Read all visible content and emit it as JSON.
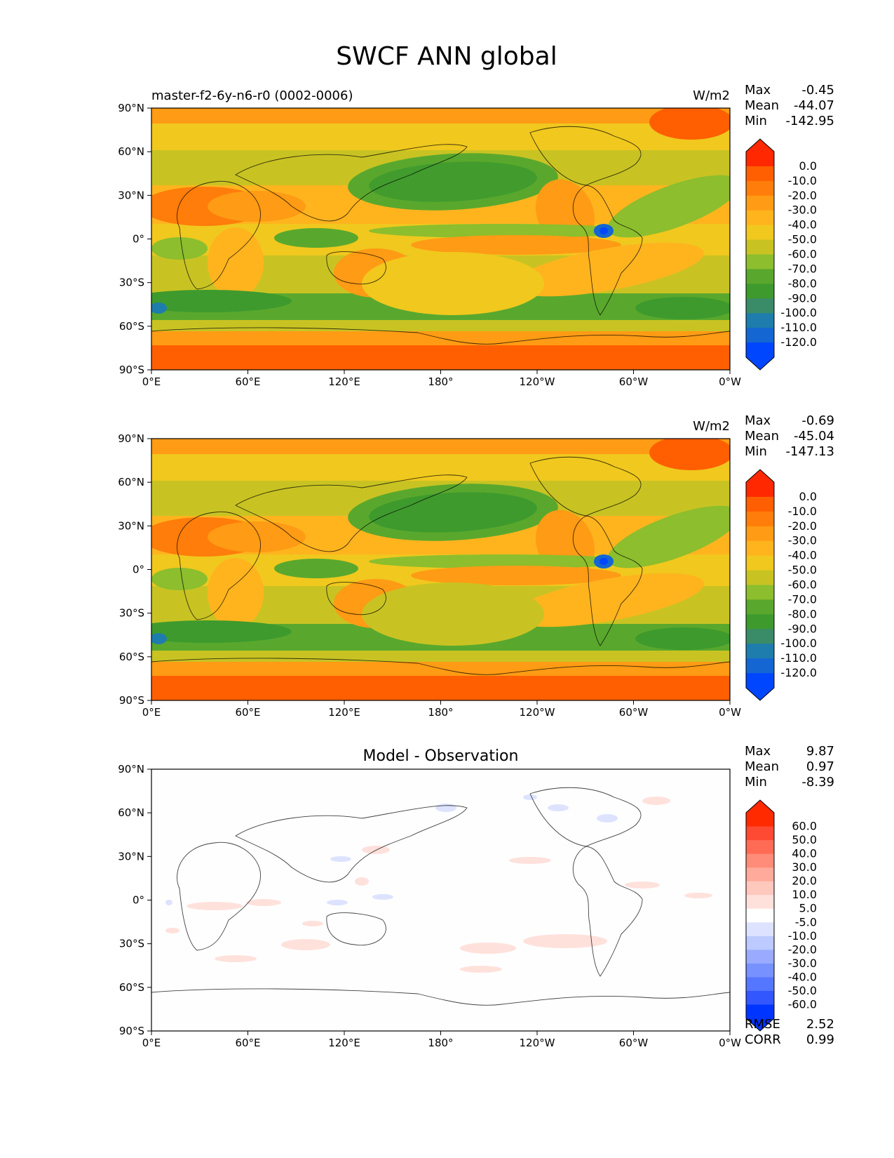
{
  "figure": {
    "title": "SWCF ANN global"
  },
  "axes": {
    "x_ticks": [
      "0°E",
      "60°E",
      "120°E",
      "180°",
      "120°W",
      "60°W",
      "0°W"
    ],
    "y_ticks": [
      "90°N",
      "60°N",
      "30°N",
      "0°",
      "30°S",
      "60°S",
      "90°S"
    ]
  },
  "colors": {
    "field": [
      "#0046ff",
      "#1466d2",
      "#1e7dac",
      "#3a8b68",
      "#3e9a2d",
      "#59a82d",
      "#8cbe2d",
      "#c8c323",
      "#f0c81e",
      "#ffb41e",
      "#ff9b14",
      "#ff7d0a",
      "#ff5f00",
      "#ff2800"
    ],
    "diff": [
      "#0034ff",
      "#3357ff",
      "#5577ff",
      "#7791ff",
      "#9aabff",
      "#bccaff",
      "#dde3ff",
      "#ffffff",
      "#ffe1dc",
      "#ffc8bd",
      "#ffaa9b",
      "#ff8c78",
      "#ff6b55",
      "#ff4a33",
      "#ff2a00"
    ]
  },
  "chart_data": [
    {
      "type": "heatmap",
      "title_left": "master-f2-6y-n6-r0 (0002-0006)",
      "units": "W/m2",
      "stats": {
        "max": {
          "label": "Max",
          "value": "-0.45"
        },
        "mean": {
          "label": "Mean",
          "value": "-44.07"
        },
        "min": {
          "label": "Min",
          "value": "-142.95"
        }
      },
      "colorbar_levels": [
        "0.0",
        "-10.0",
        "-20.0",
        "-30.0",
        "-40.0",
        "-50.0",
        "-60.0",
        "-70.0",
        "-80.0",
        "-90.0",
        "-100.0",
        "-110.0",
        "-120.0"
      ],
      "xlim": [
        0,
        360
      ],
      "ylim": [
        -90,
        90
      ]
    },
    {
      "type": "heatmap",
      "units": "W/m2",
      "stats": {
        "max": {
          "label": "Max",
          "value": "-0.69"
        },
        "mean": {
          "label": "Mean",
          "value": "-45.04"
        },
        "min": {
          "label": "Min",
          "value": "-147.13"
        }
      },
      "colorbar_levels": [
        "0.0",
        "-10.0",
        "-20.0",
        "-30.0",
        "-40.0",
        "-50.0",
        "-60.0",
        "-70.0",
        "-80.0",
        "-90.0",
        "-100.0",
        "-110.0",
        "-120.0"
      ],
      "xlim": [
        0,
        360
      ],
      "ylim": [
        -90,
        90
      ]
    },
    {
      "type": "heatmap",
      "title_center": "Model - Observation",
      "stats": {
        "max": {
          "label": "Max",
          "value": "9.87"
        },
        "mean": {
          "label": "Mean",
          "value": "0.97"
        },
        "min": {
          "label": "Min",
          "value": "-8.39"
        }
      },
      "metrics": {
        "rmse": {
          "label": "RMSE",
          "value": "2.52"
        },
        "corr": {
          "label": "CORR",
          "value": "0.99"
        }
      },
      "colorbar_levels": [
        "60.0",
        "50.0",
        "40.0",
        "30.0",
        "20.0",
        "10.0",
        "5.0",
        "-5.0",
        "-10.0",
        "-20.0",
        "-30.0",
        "-40.0",
        "-50.0",
        "-60.0"
      ],
      "xlim": [
        0,
        360
      ],
      "ylim": [
        -90,
        90
      ]
    }
  ]
}
